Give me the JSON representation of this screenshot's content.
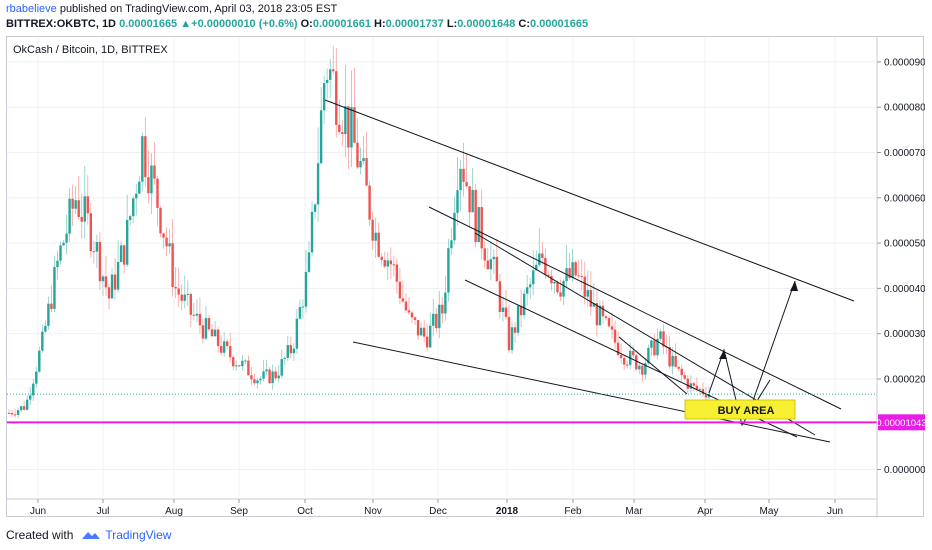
{
  "publish": {
    "author": "rbabelieve",
    "text": " published on TradingView.com, April 03, 2018 23:05 EST"
  },
  "ohlc": {
    "symbol": "BITTREX:OKBTC, 1D",
    "last": "0.00001665",
    "change": "+0.00000010 (+0.6%)",
    "o_label": "O:",
    "o": "0.00001661",
    "h_label": "H:",
    "h": "0.00001737",
    "l_label": "L:",
    "l": "0.00001648",
    "c_label": "C:",
    "c": "0.00001665"
  },
  "footer": {
    "created": "Created with",
    "brand": "TradingView"
  },
  "colors": {
    "up": "#26a69a",
    "down": "#ef5350",
    "support": "#e91ee6",
    "buy_area": "#f7f032",
    "trendline": "#131722"
  },
  "chart_data": {
    "type": "candlestick",
    "title": "OkCash / Bitcoin, 1D, BITTREX",
    "x_ticks": [
      "Jun",
      "Jul",
      "Aug",
      "Sep",
      "Oct",
      "Nov",
      "Dec",
      "2018",
      "Feb",
      "Mar",
      "Apr",
      "May",
      "Jun"
    ],
    "y_ticks": [
      "0.00009000",
      "0.00008000",
      "0.00007000",
      "0.00006000",
      "0.00005000",
      "0.00004000",
      "0.00003000",
      "0.00002000",
      "0.00000000"
    ],
    "y_tick_values": [
      9e-05,
      8e-05,
      7e-05,
      6e-05,
      5e-05,
      4e-05,
      3e-05,
      2e-05,
      0.0
    ],
    "ylim": [
      -6.5e-06,
      9.55e-05
    ],
    "support_level": 1.043e-05,
    "support_label": "0.00001043",
    "last_price": 1.665e-05,
    "buy_area_label": "BUY AREA",
    "close_series_approx": [
      1.25e-05,
      1.4e-05,
      2.8e-05,
      4.7e-05,
      6e-05,
      5.2e-05,
      3.8e-05,
      5e-05,
      7.2e-05,
      5.8e-05,
      4e-05,
      3.4e-05,
      3e-05,
      2.6e-05,
      2.3e-05,
      2e-05,
      2.1e-05,
      2.7e-05,
      4.5e-05,
      9e-05,
      8e-05,
      6.8e-05,
      5.2e-05,
      4.5e-05,
      3.3e-05,
      2.9e-05,
      3.5e-05,
      7.1e-05,
      5.5e-05,
      4.5e-05,
      2.8e-05,
      3.8e-05,
      4.7e-05,
      4.1e-05,
      4.3e-05,
      3.6e-05,
      3e-05,
      2.5e-05,
      2.3e-05,
      2.9e-05,
      2.2e-05,
      1.8e-05,
      1.7e-05
    ]
  }
}
